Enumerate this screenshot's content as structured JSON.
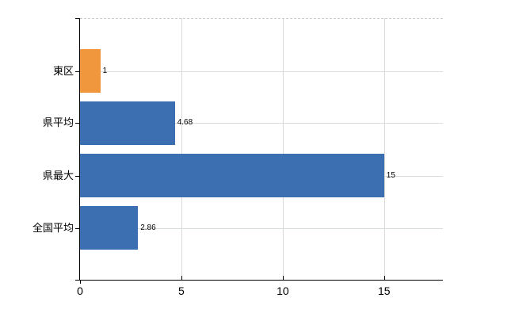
{
  "chart_data": {
    "type": "bar",
    "orientation": "horizontal",
    "title": "",
    "xlabel": "",
    "ylabel": "",
    "categories": [
      "東区",
      "県平均",
      "県最大",
      "全国平均"
    ],
    "values": [
      1,
      4.68,
      15,
      2.86
    ],
    "value_labels": [
      "1",
      "4.68",
      "15",
      "2.86"
    ],
    "bar_colors": [
      "#f0963c",
      "#3c6fb1",
      "#3c6fb1",
      "#3c6fb1"
    ],
    "xlim": [
      0,
      17.9
    ],
    "xticks": [
      0,
      5,
      10,
      15
    ],
    "xtick_labels": [
      "0",
      "5",
      "10",
      "15"
    ],
    "grid": true,
    "legend": "none",
    "colors": {
      "vertical_gridline": "#d9d9d9",
      "horizontal_gridline": "#d7ddd7",
      "top_border": "#c9c9c9",
      "axis": "#000000",
      "text": "#000000",
      "background": "#ffffff"
    }
  }
}
